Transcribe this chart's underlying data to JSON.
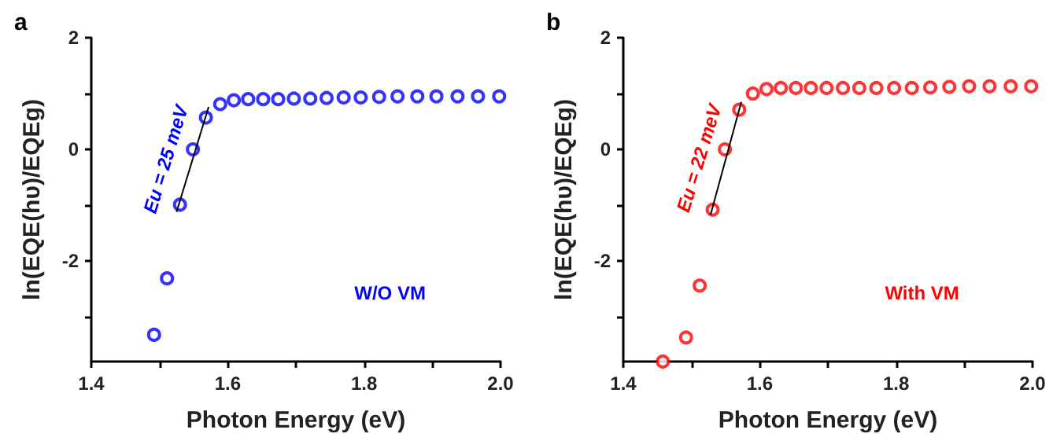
{
  "chart_data": [
    {
      "type": "scatter",
      "title": "a",
      "xlabel": "Photon Energy (eV)",
      "ylabel": "ln(EQE(hυ)/EQEg)",
      "xlim": [
        1.4,
        2.0
      ],
      "ylim": [
        -3.8,
        2
      ],
      "xticks": [
        1.4,
        {
          "value": 1.5,
          "label": null
        },
        1.6,
        {
          "value": 1.7,
          "label": null
        },
        1.8,
        {
          "value": 1.9,
          "label": null
        },
        {
          "value": 2,
          "label": "2.0"
        }
      ],
      "yticks": [
        {
          "value": -3,
          "label": null
        },
        -2,
        {
          "value": -1,
          "label": null
        },
        0,
        {
          "value": 1,
          "label": null
        },
        2
      ],
      "grid": false,
      "legend": false,
      "annotations": [
        "Eu = 25 meV"
      ],
      "series": [
        {
          "name": "W/O VM",
          "marker": "circle",
          "color": "#0000ff",
          "x": [
            1.492,
            1.511,
            1.53,
            1.549,
            1.568,
            1.589,
            1.609,
            1.63,
            1.652,
            1.674,
            1.697,
            1.721,
            1.745,
            1.77,
            1.795,
            1.822,
            1.849,
            1.878,
            1.906,
            1.937,
            1.967,
            1.998
          ],
          "values": [
            -3.32,
            -2.31,
            -0.99,
            0,
            0.57,
            0.81,
            0.88,
            0.9,
            0.9,
            0.9,
            0.91,
            0.91,
            0.92,
            0.93,
            0.93,
            0.94,
            0.95,
            0.95,
            0.95,
            0.95,
            0.95,
            0.95
          ]
        },
        {
          "type": "line",
          "marker": "none",
          "line_style": "solid",
          "color": "#000000",
          "x": [
            1.525,
            1.572
          ],
          "values": [
            -1.12,
            0.76
          ]
        }
      ]
    },
    {
      "type": "scatter",
      "title": "b",
      "xlabel": "Photon Energy (eV)",
      "ylabel": "ln(EQE(hυ)/EQEg)",
      "xlim": [
        1.4,
        2.0
      ],
      "ylim": [
        -3.8,
        2
      ],
      "xticks": [
        1.4,
        {
          "value": 1.5,
          "label": null
        },
        1.6,
        {
          "value": 1.7,
          "label": null
        },
        1.8,
        {
          "value": 1.9,
          "label": null
        },
        {
          "value": 2,
          "label": "2.0"
        }
      ],
      "yticks": [
        {
          "value": -3,
          "label": null
        },
        -2,
        {
          "value": -1,
          "label": null
        },
        0,
        {
          "value": 1,
          "label": null
        },
        2
      ],
      "grid": false,
      "legend": false,
      "annotations": [
        "Eu = 22 meV"
      ],
      "series": [
        {
          "name": "With VM",
          "marker": "circle",
          "color": "#ff0000",
          "x": [
            1.458,
            1.492,
            1.512,
            1.531,
            1.549,
            1.57,
            1.59,
            1.61,
            1.631,
            1.653,
            1.675,
            1.698,
            1.722,
            1.746,
            1.771,
            1.797,
            1.823,
            1.85,
            1.878,
            1.907,
            1.937,
            1.968,
            1.998
          ],
          "values": [
            -3.8,
            -3.37,
            -2.44,
            -1.08,
            0,
            0.71,
            1.0,
            1.08,
            1.1,
            1.1,
            1.1,
            1.1,
            1.1,
            1.1,
            1.1,
            1.1,
            1.1,
            1.11,
            1.12,
            1.13,
            1.13,
            1.13,
            1.13
          ]
        },
        {
          "type": "line",
          "marker": "none",
          "line_style": "solid",
          "color": "#000000",
          "x": [
            1.528,
            1.573
          ],
          "values": [
            -1.17,
            0.85
          ]
        }
      ]
    }
  ]
}
